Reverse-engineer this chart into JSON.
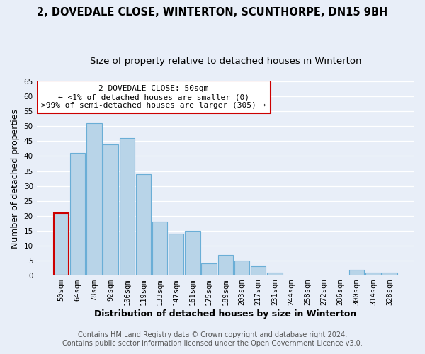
{
  "title": "2, DOVEDALE CLOSE, WINTERTON, SCUNTHORPE, DN15 9BH",
  "subtitle": "Size of property relative to detached houses in Winterton",
  "xlabel": "Distribution of detached houses by size in Winterton",
  "ylabel": "Number of detached properties",
  "bar_labels": [
    "50sqm",
    "64sqm",
    "78sqm",
    "92sqm",
    "106sqm",
    "119sqm",
    "133sqm",
    "147sqm",
    "161sqm",
    "175sqm",
    "189sqm",
    "203sqm",
    "217sqm",
    "231sqm",
    "244sqm",
    "258sqm",
    "272sqm",
    "286sqm",
    "300sqm",
    "314sqm",
    "328sqm"
  ],
  "bar_values": [
    21,
    41,
    51,
    44,
    46,
    34,
    18,
    14,
    15,
    4,
    7,
    5,
    3,
    1,
    0,
    0,
    0,
    0,
    2,
    1,
    1
  ],
  "bar_color": "#b8d4e8",
  "bar_edge_color": "#6aaed6",
  "highlight_bar_index": 0,
  "highlight_edge_color": "#cc0000",
  "ylim": [
    0,
    65
  ],
  "yticks": [
    0,
    5,
    10,
    15,
    20,
    25,
    30,
    35,
    40,
    45,
    50,
    55,
    60,
    65
  ],
  "annotation_title": "2 DOVEDALE CLOSE: 50sqm",
  "annotation_line1": "← <1% of detached houses are smaller (0)",
  "annotation_line2": ">99% of semi-detached houses are larger (305) →",
  "annotation_box_color": "#ffffff",
  "annotation_box_edge_color": "#cc0000",
  "footer_line1": "Contains HM Land Registry data © Crown copyright and database right 2024.",
  "footer_line2": "Contains public sector information licensed under the Open Government Licence v3.0.",
  "background_color": "#e8eef8",
  "plot_bg_color": "#e8eef8",
  "grid_color": "#ffffff",
  "title_fontsize": 10.5,
  "subtitle_fontsize": 9.5,
  "axis_label_fontsize": 9,
  "tick_fontsize": 7.5,
  "footer_fontsize": 7
}
